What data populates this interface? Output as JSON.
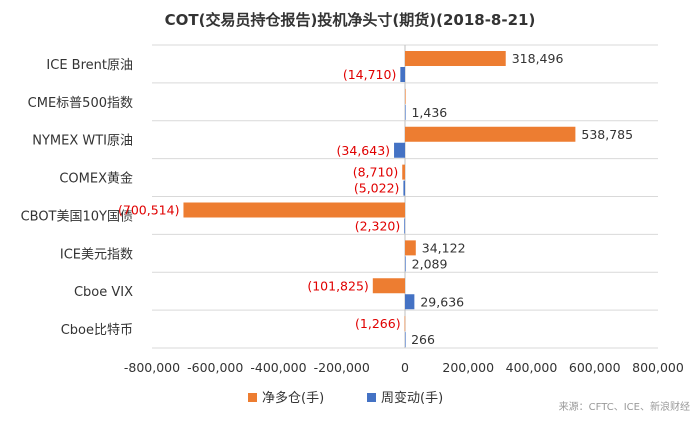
{
  "chart_data": {
    "type": "bar",
    "orientation": "horizontal",
    "title": "COT(交易员持仓报告)投机净头寸(期货)(2018-8-21)",
    "categories": [
      "ICE Brent原油",
      "CME标普500指数",
      "NYMEX WTI原油",
      "COMEX黄金",
      "CBOT美国10Y国债",
      "ICE美元指数",
      "Cboe VIX",
      "Cboe比特币"
    ],
    "series": [
      {
        "name": "净多仓(手)",
        "color": "#ed7d31",
        "values": [
          318496,
          0,
          538785,
          -8710,
          -700514,
          34122,
          -101825,
          -1266
        ],
        "labels": [
          "318,496",
          "",
          "538,785",
          "(8,710)",
          "(700,514)",
          "34,122",
          "(101,825)",
          "(1,266)"
        ]
      },
      {
        "name": "周变动(手)",
        "color": "#4472c4",
        "values": [
          -14710,
          1436,
          -34643,
          -5022,
          -2320,
          2089,
          29636,
          266
        ],
        "labels": [
          "(14,710)",
          "1,436",
          "(34,643)",
          "(5,022)",
          "(2,320)",
          "2,089",
          "29,636",
          "266"
        ]
      }
    ],
    "xlim": [
      -800000,
      800000
    ],
    "xticks": [
      -800000,
      -600000,
      -400000,
      -200000,
      0,
      200000,
      400000,
      600000,
      800000
    ],
    "xtick_labels": [
      "-800,000",
      "-600,000",
      "-400,000",
      "-200,000",
      "0",
      "200,000",
      "400,000",
      "600,000",
      "800,000"
    ],
    "grid": true,
    "legend_position": "bottom"
  },
  "source": "来源：CFTC、ICE、新浪财经"
}
